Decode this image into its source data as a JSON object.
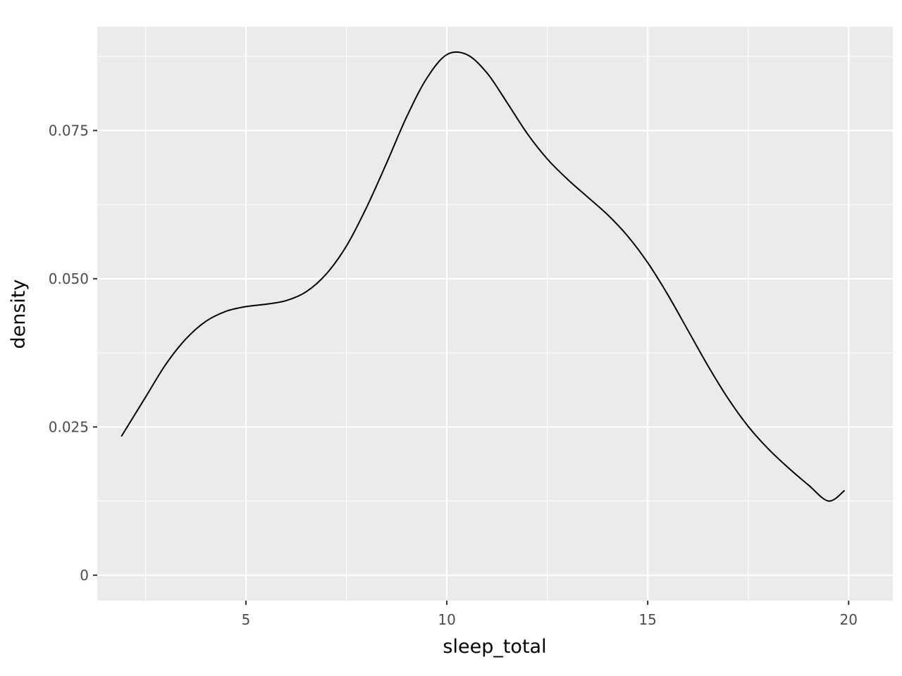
{
  "chart_data": {
    "type": "line",
    "title": "",
    "xlabel": "sleep_total",
    "ylabel": "density",
    "xlim": [
      1.3,
      21.1
    ],
    "ylim": [
      -0.0043,
      0.0925
    ],
    "x_ticks": [
      5,
      10,
      15,
      20
    ],
    "x_tick_labels": [
      "5",
      "10",
      "15",
      "20"
    ],
    "x_minor_ticks": [
      2.5,
      7.5,
      12.5,
      17.5
    ],
    "y_ticks": [
      0,
      0.025,
      0.05,
      0.075
    ],
    "y_tick_labels": [
      "0",
      "0.025",
      "0.050",
      "0.075"
    ],
    "y_minor_ticks": [
      0.0125,
      0.0375,
      0.0625,
      0.0875
    ],
    "grid": true,
    "legend": "none",
    "colors": {
      "panel_background": "#ebebeb",
      "grid_line": "#ffffff",
      "line": "#000000",
      "tick_text": "#4d4d4d",
      "axis_title_text": "#000000"
    },
    "series": [
      {
        "x": [
          1.9,
          2.5,
          3.0,
          3.5,
          4.0,
          4.5,
          5.0,
          5.5,
          6.0,
          6.5,
          7.0,
          7.5,
          8.0,
          8.5,
          9.0,
          9.5,
          10.0,
          10.5,
          11.0,
          11.5,
          12.0,
          12.5,
          13.0,
          13.5,
          14.0,
          14.5,
          15.0,
          15.5,
          16.0,
          16.5,
          17.0,
          17.5,
          18.0,
          18.5,
          19.0,
          19.5,
          19.9
        ],
        "y": [
          0.0234,
          0.03,
          0.0355,
          0.0398,
          0.0428,
          0.0445,
          0.0453,
          0.0457,
          0.0463,
          0.0478,
          0.0508,
          0.0555,
          0.062,
          0.0695,
          0.0773,
          0.0838,
          0.0878,
          0.0878,
          0.0847,
          0.0797,
          0.0745,
          0.0702,
          0.0668,
          0.0638,
          0.0608,
          0.0572,
          0.0527,
          0.0473,
          0.0413,
          0.0353,
          0.0298,
          0.0251,
          0.0213,
          0.0181,
          0.0152,
          0.0125,
          0.0143
        ]
      }
    ]
  }
}
